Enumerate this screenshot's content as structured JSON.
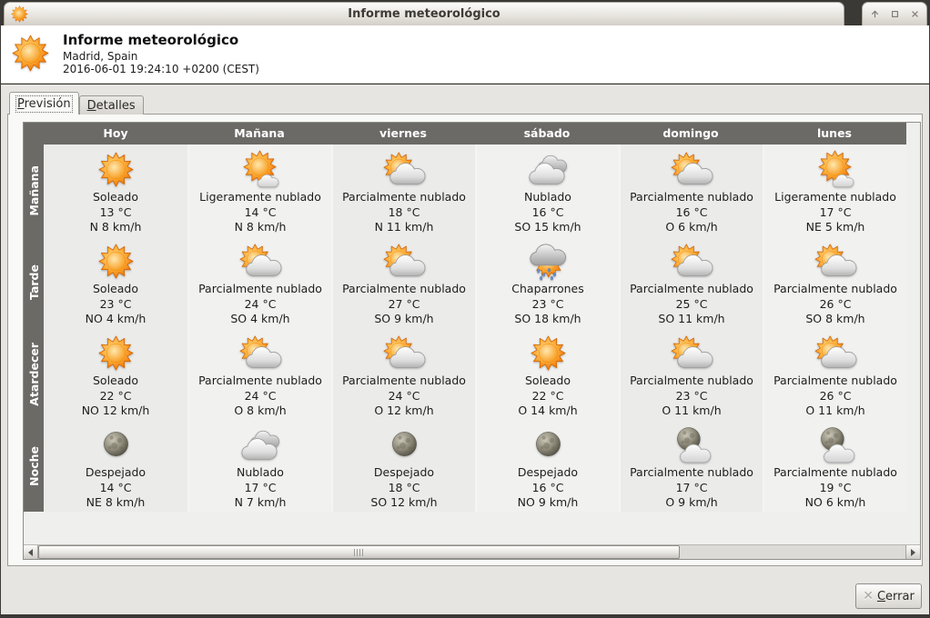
{
  "window": {
    "title": "Informe meteorológico",
    "controls": [
      {
        "name": "shade-window"
      },
      {
        "name": "maximize-window"
      },
      {
        "name": "close-window"
      }
    ]
  },
  "header": {
    "title": "Informe meteorológico",
    "location": "Madrid, Spain",
    "timestamp": "2016-06-01 19:24:10 +0200 (CEST)"
  },
  "tabs": [
    {
      "label": "Previsión",
      "accel_index": 0,
      "active": true
    },
    {
      "label": "Detalles",
      "accel_index": 0,
      "active": false
    }
  ],
  "forecast": {
    "columns": [
      "Hoy",
      "Mañana",
      "viernes",
      "sábado",
      "domingo",
      "lunes"
    ],
    "rows": [
      {
        "label": "Mañana",
        "cells": [
          {
            "icon": "sun",
            "condition": "Soleado",
            "temp": "13 °C",
            "wind": "N 8 km/h"
          },
          {
            "icon": "sun-small-cloud",
            "condition": "Ligeramente nublado",
            "temp": "14 °C",
            "wind": "N 8 km/h"
          },
          {
            "icon": "sun-cloud",
            "condition": "Parcialmente nublado",
            "temp": "18 °C",
            "wind": "N 11 km/h"
          },
          {
            "icon": "clouds",
            "condition": "Nublado",
            "temp": "16 °C",
            "wind": "SO 15 km/h"
          },
          {
            "icon": "sun-cloud",
            "condition": "Parcialmente nublado",
            "temp": "16 °C",
            "wind": "O 6 km/h"
          },
          {
            "icon": "sun-small-cloud",
            "condition": "Ligeramente nublado",
            "temp": "17 °C",
            "wind": "NE 5 km/h"
          }
        ]
      },
      {
        "label": "Tarde",
        "cells": [
          {
            "icon": "sun",
            "condition": "Soleado",
            "temp": "23 °C",
            "wind": "NO 4 km/h"
          },
          {
            "icon": "sun-cloud",
            "condition": "Parcialmente nublado",
            "temp": "24 °C",
            "wind": "SO 4 km/h"
          },
          {
            "icon": "sun-cloud",
            "condition": "Parcialmente nublado",
            "temp": "27 °C",
            "wind": "SO 9 km/h"
          },
          {
            "icon": "rain",
            "condition": "Chaparrones",
            "temp": "23 °C",
            "wind": "SO 18 km/h"
          },
          {
            "icon": "sun-cloud",
            "condition": "Parcialmente nublado",
            "temp": "25 °C",
            "wind": "SO 11 km/h"
          },
          {
            "icon": "sun-cloud",
            "condition": "Parcialmente nublado",
            "temp": "26 °C",
            "wind": "SO 8 km/h"
          }
        ]
      },
      {
        "label": "Atardecer",
        "cells": [
          {
            "icon": "sun",
            "condition": "Soleado",
            "temp": "22 °C",
            "wind": "NO 12 km/h"
          },
          {
            "icon": "sun-cloud",
            "condition": "Parcialmente nublado",
            "temp": "24 °C",
            "wind": "O 8 km/h"
          },
          {
            "icon": "sun-cloud",
            "condition": "Parcialmente nublado",
            "temp": "24 °C",
            "wind": "O 12 km/h"
          },
          {
            "icon": "sun",
            "condition": "Soleado",
            "temp": "22 °C",
            "wind": "O 14 km/h"
          },
          {
            "icon": "sun-cloud",
            "condition": "Parcialmente nublado",
            "temp": "23 °C",
            "wind": "O 11 km/h"
          },
          {
            "icon": "sun-cloud",
            "condition": "Parcialmente nublado",
            "temp": "26 °C",
            "wind": "O 11 km/h"
          }
        ]
      },
      {
        "label": "Noche",
        "cells": [
          {
            "icon": "moon",
            "condition": "Despejado",
            "temp": "14 °C",
            "wind": "NE 8 km/h"
          },
          {
            "icon": "clouds",
            "condition": "Nublado",
            "temp": "17 °C",
            "wind": "N 7 km/h"
          },
          {
            "icon": "moon",
            "condition": "Despejado",
            "temp": "18 °C",
            "wind": "SO 12 km/h"
          },
          {
            "icon": "moon",
            "condition": "Despejado",
            "temp": "16 °C",
            "wind": "NO 9 km/h"
          },
          {
            "icon": "moon-cloud",
            "condition": "Parcialmente nublado",
            "temp": "17 °C",
            "wind": "O 9 km/h"
          },
          {
            "icon": "moon-cloud",
            "condition": "Parcialmente nublado",
            "temp": "19 °C",
            "wind": "NO 6 km/h"
          }
        ]
      }
    ]
  },
  "scrollbar": {
    "thumb_percent": 74
  },
  "close_button": {
    "label": "Cerrar",
    "accel_index": 0
  },
  "colors": {
    "titlebar_frame": "#3a3935",
    "table_header": "#6b6a67",
    "panel_bg": "#e7e5e1",
    "page_bg": "#f9f9f7",
    "cell_bg": "#eeeeed",
    "sun_orange": "#f57900",
    "rain_drop": "#3465a4"
  }
}
